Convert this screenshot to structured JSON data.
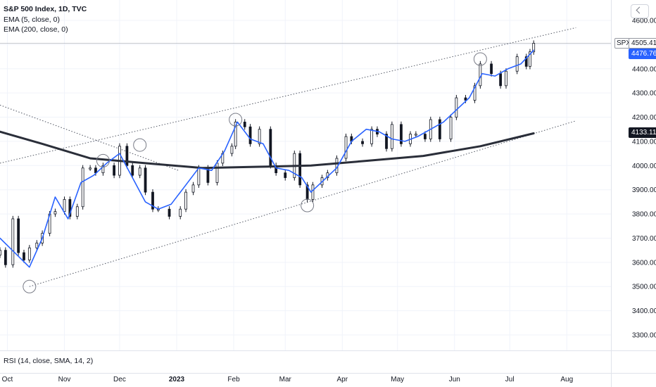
{
  "legend": {
    "title": "S&P 500 Index, 1D, TVC",
    "ema5": "EMA (5, close, 0)",
    "ema200": "EMA (200, close, 0)",
    "rsi": "RSI (14, close, SMA, 14, 2)"
  },
  "tags": {
    "symbol": "SPX",
    "last": "4505.41",
    "ema5": "4476.76",
    "ema200": "4133.11"
  },
  "colors": {
    "ema5": "#2962ff",
    "ema200": "#2a2e39",
    "candle": "#131722",
    "grid": "#f0f3fa",
    "trendline": "#555a66"
  },
  "chart_data": {
    "type": "line",
    "symbol": "SPX",
    "interval": "1D",
    "y_ticks": [
      3300,
      3400,
      3500,
      3600,
      3700,
      3800,
      3900,
      4000,
      4100,
      4200,
      4300,
      4400,
      4500,
      4600
    ],
    "ylim": [
      3195,
      4670
    ],
    "x_ticks": [
      {
        "label": "Oct",
        "date": "2022-10-01"
      },
      {
        "label": "Nov",
        "date": "2022-11-01"
      },
      {
        "label": "Dec",
        "date": "2022-12-01"
      },
      {
        "label": "2023",
        "date": "2023-01-01"
      },
      {
        "label": "Feb",
        "date": "2023-02-01"
      },
      {
        "label": "Mar",
        "date": "2023-03-01"
      },
      {
        "label": "Apr",
        "date": "2023-04-01"
      },
      {
        "label": "May",
        "date": "2023-05-01"
      },
      {
        "label": "Jun",
        "date": "2023-06-01"
      },
      {
        "label": "Jul",
        "date": "2023-07-01"
      },
      {
        "label": "Aug",
        "date": "2023-08-01"
      }
    ],
    "xlim": [
      "2022-09-27",
      "2023-08-25"
    ],
    "last_price": 4505.41,
    "ema5_last": 4476.76,
    "ema200_last": 4133.11,
    "series": [
      {
        "name": "EMA (5, close, 0)",
        "x": [
          "2022-09-27",
          "2022-10-05",
          "2022-10-13",
          "2022-10-20",
          "2022-10-27",
          "2022-11-03",
          "2022-11-10",
          "2022-11-17",
          "2022-11-24",
          "2022-12-01",
          "2022-12-08",
          "2022-12-15",
          "2022-12-22",
          "2022-12-29",
          "2023-01-06",
          "2023-01-13",
          "2023-01-20",
          "2023-01-27",
          "2023-02-03",
          "2023-02-10",
          "2023-02-17",
          "2023-02-24",
          "2023-03-03",
          "2023-03-10",
          "2023-03-15",
          "2023-03-22",
          "2023-03-29",
          "2023-04-06",
          "2023-04-14",
          "2023-04-21",
          "2023-04-28",
          "2023-05-05",
          "2023-05-12",
          "2023-05-19",
          "2023-05-26",
          "2023-06-02",
          "2023-06-09",
          "2023-06-16",
          "2023-06-23",
          "2023-06-30",
          "2023-07-07",
          "2023-07-14"
        ],
        "y": [
          3700,
          3640,
          3580,
          3700,
          3870,
          3780,
          3930,
          3960,
          4010,
          4050,
          3950,
          3850,
          3820,
          3840,
          3920,
          3990,
          3980,
          4060,
          4180,
          4110,
          4090,
          3990,
          3980,
          3950,
          3890,
          3940,
          3990,
          4100,
          4150,
          4140,
          4110,
          4100,
          4120,
          4150,
          4180,
          4230,
          4280,
          4380,
          4370,
          4400,
          4420,
          4476.76
        ]
      },
      {
        "name": "EMA (200, close, 0)",
        "x": [
          "2022-09-27",
          "2022-10-20",
          "2022-11-15",
          "2022-12-15",
          "2023-01-15",
          "2023-02-15",
          "2023-03-15",
          "2023-04-15",
          "2023-05-15",
          "2023-06-15",
          "2023-07-14"
        ],
        "y": [
          4140,
          4090,
          4030,
          4010,
          3990,
          3995,
          4000,
          4020,
          4040,
          4080,
          4133.11
        ]
      },
      {
        "name": "Close",
        "x": [
          "2022-09-27",
          "2022-09-30",
          "2022-10-04",
          "2022-10-07",
          "2022-10-10",
          "2022-10-13",
          "2022-10-17",
          "2022-10-20",
          "2022-10-24",
          "2022-10-27",
          "2022-11-01",
          "2022-11-04",
          "2022-11-08",
          "2022-11-11",
          "2022-11-15",
          "2022-11-18",
          "2022-11-22",
          "2022-11-28",
          "2022-12-01",
          "2022-12-05",
          "2022-12-08",
          "2022-12-12",
          "2022-12-15",
          "2022-12-19",
          "2022-12-22",
          "2022-12-28",
          "2023-01-03",
          "2023-01-06",
          "2023-01-10",
          "2023-01-13",
          "2023-01-18",
          "2023-01-23",
          "2023-01-26",
          "2023-01-31",
          "2023-02-02",
          "2023-02-07",
          "2023-02-10",
          "2023-02-15",
          "2023-02-21",
          "2023-02-24",
          "2023-03-01",
          "2023-03-06",
          "2023-03-09",
          "2023-03-13",
          "2023-03-16",
          "2023-03-21",
          "2023-03-24",
          "2023-03-29",
          "2023-04-03",
          "2023-04-06",
          "2023-04-12",
          "2023-04-17",
          "2023-04-20",
          "2023-04-25",
          "2023-04-28",
          "2023-05-03",
          "2023-05-08",
          "2023-05-11",
          "2023-05-16",
          "2023-05-19",
          "2023-05-24",
          "2023-05-30",
          "2023-06-02",
          "2023-06-07",
          "2023-06-12",
          "2023-06-15",
          "2023-06-21",
          "2023-06-26",
          "2023-06-29",
          "2023-07-05",
          "2023-07-10",
          "2023-07-12",
          "2023-07-14"
        ],
        "y": [
          3650,
          3590,
          3780,
          3640,
          3610,
          3660,
          3680,
          3720,
          3800,
          3810,
          3860,
          3790,
          3830,
          3990,
          3990,
          3970,
          4000,
          3960,
          4080,
          4000,
          3960,
          3990,
          3890,
          3820,
          3820,
          3790,
          3820,
          3890,
          3920,
          3990,
          3930,
          4010,
          4050,
          4080,
          4180,
          4160,
          4090,
          4150,
          4000,
          3970,
          3950,
          4050,
          3920,
          3860,
          3920,
          3950,
          3970,
          4030,
          4120,
          4100,
          4090,
          4150,
          4130,
          4070,
          4170,
          4090,
          4130,
          4130,
          4110,
          4190,
          4110,
          4200,
          4280,
          4270,
          4330,
          4420,
          4380,
          4330,
          4390,
          4450,
          4410,
          4470,
          4505.41
        ]
      }
    ],
    "upper_trendline": {
      "x": [
        "2022-09-27",
        "2023-08-06"
      ],
      "y": [
        4010,
        4570
      ]
    },
    "lower_trendline": {
      "x": [
        "2022-10-13",
        "2023-08-06"
      ],
      "y": [
        3500,
        4185
      ]
    },
    "descending_trendline": {
      "x": [
        "2022-09-27",
        "2023-01-02"
      ],
      "y": [
        4250,
        3980
      ]
    }
  }
}
